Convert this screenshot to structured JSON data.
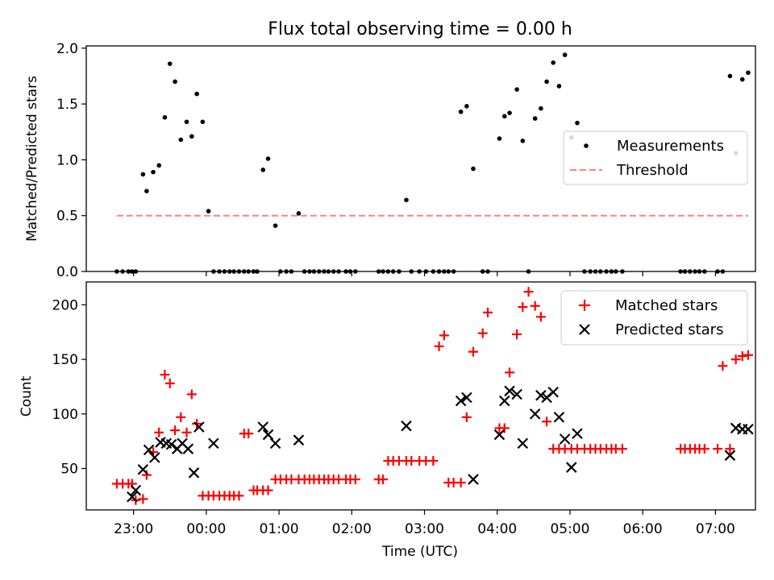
{
  "title": "Flux total observing time = 0.00 h",
  "xlabel": "Time (UTC)",
  "x_ticks": [
    "23:00",
    "00:00",
    "01:00",
    "02:00",
    "03:00",
    "04:00",
    "05:00",
    "06:00",
    "07:00"
  ],
  "colors": {
    "measurement": "#000000",
    "threshold": "#ff8080",
    "matched": "#ff0000",
    "predicted": "#000000"
  },
  "chart_data": [
    {
      "type": "scatter",
      "ylabel": "Matched/Predicted stars",
      "x_unit": "hours after midnight UTC (labels HH:MM)",
      "xlim": [
        -1.65,
        7.55
      ],
      "ylim": [
        0,
        2.02
      ],
      "y_ticks": [
        0.0,
        0.5,
        1.0,
        1.5,
        2.0
      ],
      "y_tick_labels": [
        "0.0",
        "0.5",
        "1.0",
        "1.5",
        "2.0"
      ],
      "legend_position": "center-right",
      "series": [
        {
          "name": "Measurements",
          "marker": "dot",
          "x": [
            -1.23,
            -1.15,
            -1.07,
            -1.02,
            -0.97,
            -0.87,
            -0.82,
            -0.73,
            -0.65,
            -0.57,
            -0.5,
            -0.43,
            -0.35,
            -0.27,
            -0.2,
            -0.13,
            -0.05,
            0.03,
            0.1,
            0.18,
            0.25,
            0.32,
            0.38,
            0.45,
            0.52,
            0.58,
            0.65,
            0.7,
            0.78,
            0.85,
            0.95,
            1.02,
            1.1,
            1.17,
            1.27,
            1.35,
            1.42,
            1.48,
            1.55,
            1.62,
            1.68,
            1.75,
            1.82,
            1.92,
            1.98,
            2.05,
            2.37,
            2.43,
            2.5,
            2.57,
            2.65,
            2.75,
            2.82,
            2.93,
            3.02,
            3.12,
            3.2,
            3.27,
            3.33,
            3.4,
            3.5,
            3.58,
            3.67,
            3.8,
            3.87,
            4.03,
            4.1,
            4.17,
            4.27,
            4.35,
            4.43,
            4.52,
            4.6,
            4.68,
            4.77,
            4.85,
            4.93,
            5.02,
            5.1,
            5.2,
            5.28,
            5.35,
            5.42,
            5.5,
            5.57,
            5.63,
            5.72,
            6.52,
            6.58,
            6.65,
            6.72,
            6.78,
            6.85,
            7.03,
            7.1,
            7.2,
            7.28,
            7.37,
            7.45
          ],
          "y": [
            0,
            0,
            0,
            0,
            0,
            0.87,
            0.72,
            0.89,
            0.95,
            1.38,
            1.86,
            1.7,
            1.18,
            1.34,
            1.21,
            1.59,
            1.34,
            0.54,
            0,
            0,
            0,
            0,
            0,
            0,
            0,
            0,
            0,
            0,
            0.91,
            1.01,
            0.41,
            0,
            0,
            0,
            0.52,
            0,
            0,
            0,
            0,
            0,
            0,
            0,
            0,
            0,
            0,
            0,
            0,
            0,
            0,
            0,
            0,
            0.64,
            0,
            0,
            0,
            0,
            0,
            0,
            0,
            0,
            1.43,
            1.48,
            0.92,
            0,
            0,
            1.19,
            1.39,
            1.42,
            1.63,
            1.17,
            0,
            1.37,
            1.46,
            1.7,
            1.87,
            1.66,
            1.94,
            1.2,
            1.33,
            0,
            0,
            0,
            0,
            0,
            0,
            0,
            0,
            0,
            0,
            0,
            0,
            0,
            0,
            0,
            0,
            1.75,
            1.06,
            1.72,
            1.78
          ]
        },
        {
          "name": "Threshold",
          "marker": "dashed-line",
          "x": [
            -1.23,
            7.45
          ],
          "y": [
            0.5,
            0.5
          ]
        }
      ]
    },
    {
      "type": "scatter",
      "ylabel": "Count",
      "x_unit": "hours after midnight UTC (labels HH:MM)",
      "xlim": [
        -1.65,
        7.55
      ],
      "ylim": [
        12,
        221
      ],
      "y_ticks": [
        50,
        100,
        150,
        200
      ],
      "y_tick_labels": [
        "50",
        "100",
        "150",
        "200"
      ],
      "legend_position": "top-right",
      "series": [
        {
          "name": "Matched stars",
          "marker": "plus",
          "x": [
            -1.23,
            -1.15,
            -1.07,
            -1.02,
            -0.97,
            -0.87,
            -0.82,
            -0.73,
            -0.65,
            -0.57,
            -0.5,
            -0.43,
            -0.35,
            -0.27,
            -0.2,
            -0.13,
            -0.05,
            0.03,
            0.1,
            0.18,
            0.25,
            0.32,
            0.38,
            0.45,
            0.52,
            0.58,
            0.65,
            0.7,
            0.78,
            0.85,
            0.95,
            1.02,
            1.1,
            1.17,
            1.27,
            1.35,
            1.42,
            1.48,
            1.55,
            1.62,
            1.68,
            1.75,
            1.82,
            1.92,
            1.98,
            2.05,
            2.37,
            2.43,
            2.5,
            2.57,
            2.65,
            2.75,
            2.82,
            2.93,
            3.02,
            3.12,
            3.2,
            3.27,
            3.33,
            3.4,
            3.5,
            3.58,
            3.67,
            3.8,
            3.87,
            4.03,
            4.1,
            4.17,
            4.27,
            4.35,
            4.43,
            4.52,
            4.6,
            4.68,
            4.77,
            4.85,
            4.93,
            5.02,
            5.1,
            5.2,
            5.28,
            5.35,
            5.42,
            5.5,
            5.57,
            5.63,
            5.72,
            6.52,
            6.58,
            6.65,
            6.72,
            6.78,
            6.85,
            7.03,
            7.1,
            7.2,
            7.28,
            7.37,
            7.45
          ],
          "y": [
            36,
            36,
            36,
            36,
            21,
            22,
            44,
            65,
            83,
            136,
            128,
            85,
            97,
            83,
            118,
            91,
            25,
            25,
            25,
            25,
            25,
            25,
            25,
            25,
            82,
            82,
            30,
            30,
            30,
            30,
            40,
            40,
            40,
            40,
            40,
            40,
            40,
            40,
            40,
            40,
            40,
            40,
            40,
            40,
            40,
            40,
            40,
            40,
            57,
            57,
            57,
            57,
            57,
            57,
            57,
            57,
            162,
            172,
            37,
            37,
            37,
            97,
            157,
            174,
            193,
            87,
            87,
            138,
            173,
            198,
            212,
            199,
            189,
            93,
            68,
            68,
            68,
            68,
            68,
            68,
            68,
            68,
            68,
            68,
            68,
            68,
            68,
            68,
            68,
            68,
            68,
            68,
            68,
            68,
            144,
            68,
            150,
            153,
            154
          ]
        },
        {
          "name": "Predicted stars",
          "marker": "x",
          "x": [
            -1.02,
            -0.97,
            -0.87,
            -0.79,
            -0.71,
            -0.63,
            -0.55,
            -0.48,
            -0.4,
            -0.33,
            -0.25,
            -0.17,
            -0.1,
            0.1,
            0.78,
            0.85,
            0.95,
            1.27,
            2.75,
            3.5,
            3.58,
            3.67,
            4.03,
            4.1,
            4.17,
            4.27,
            4.35,
            4.52,
            4.6,
            4.68,
            4.77,
            4.85,
            4.93,
            5.02,
            5.1,
            7.2,
            7.28,
            7.37,
            7.45
          ],
          "y": [
            24,
            30,
            49,
            67,
            60,
            74,
            73,
            72,
            68,
            73,
            68,
            46,
            88,
            73,
            88,
            81,
            73,
            76,
            89,
            112,
            115,
            40,
            81,
            112,
            121,
            118,
            73,
            100,
            117,
            115,
            120,
            97,
            77,
            51,
            82,
            62,
            87,
            86,
            86
          ]
        }
      ]
    }
  ]
}
